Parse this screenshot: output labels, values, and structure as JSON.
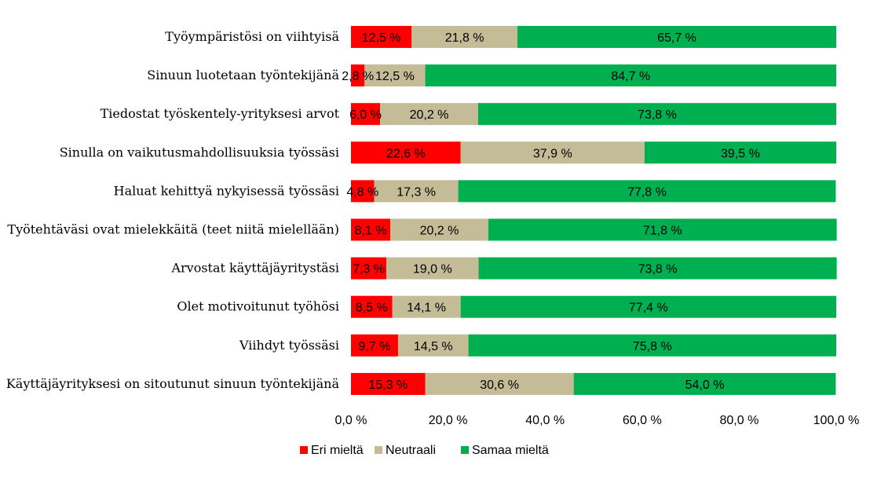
{
  "chart_data": {
    "type": "bar",
    "orientation": "horizontal",
    "stacked": true,
    "categories": [
      "Työympäristösi on viihtyisä",
      "Sinuun luotetaan työntekijänä",
      "Tiedostat työskentely-yrityksesi arvot",
      "Sinulla on vaikutusmahdollisuuksia työssäsi",
      "Haluat kehittyä nykyisessä työssäsi",
      "Työtehtäväsi ovat mielekkäitä (teet niitä mielellään)",
      "Arvostat käyttäjäyritystäsi",
      "Olet motivoitunut työhösi",
      "Viihdyt työssäsi",
      "Käyttäjäyrityksesi on sitoutunut sinuun työntekijänä"
    ],
    "series": [
      {
        "name": "Eri mieltä",
        "color": "#ff0000",
        "values": [
          12.5,
          2.8,
          6.0,
          22.6,
          4.8,
          8.1,
          7.3,
          8.5,
          9.7,
          15.3
        ],
        "labels": [
          "12,5 %",
          "2,8 %",
          "6,0 %",
          "22,6 %",
          "4,8 %",
          "8,1 %",
          "7,3 %",
          "8,5 %",
          "9,7 %",
          "15,3 %"
        ]
      },
      {
        "name": "Neutraali",
        "color": "#c4bc96",
        "values": [
          21.8,
          12.5,
          20.2,
          37.9,
          17.3,
          20.2,
          19.0,
          14.1,
          14.5,
          30.6
        ],
        "labels": [
          "21,8 %",
          "12,5 %",
          "20,2 %",
          "37,9 %",
          "17,3 %",
          "20,2 %",
          "19,0 %",
          "14,1 %",
          "14,5 %",
          "30,6 %"
        ]
      },
      {
        "name": "Samaa mieltä",
        "color": "#00b050",
        "values": [
          65.7,
          84.7,
          73.8,
          39.5,
          77.8,
          71.8,
          73.8,
          77.4,
          75.8,
          54.0
        ],
        "labels": [
          "65,7 %",
          "84,7 %",
          "73,8 %",
          "39,5 %",
          "77,8 %",
          "71,8 %",
          "73,8 %",
          "77,4 %",
          "75,8 %",
          "54,0 %"
        ]
      }
    ],
    "xlim": [
      0,
      100
    ],
    "x_ticks": [
      0,
      20,
      40,
      60,
      80,
      100
    ],
    "x_tick_labels": [
      "0,0 %",
      "20,0 %",
      "40,0 %",
      "60,0 %",
      "80,0 %",
      "100,0 %"
    ],
    "grid": false,
    "legend_position": "bottom"
  }
}
